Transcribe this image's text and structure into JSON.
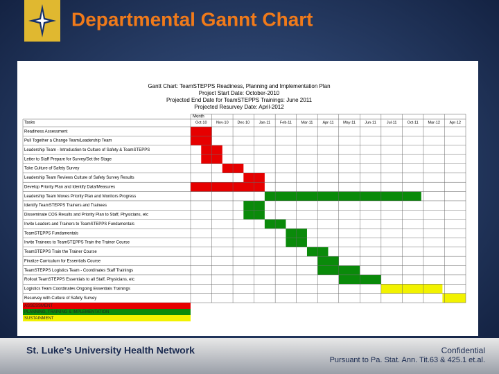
{
  "header": {
    "title": "Departmental Gannt Chart"
  },
  "gantt": {
    "title_lines": [
      "Gantt Chart: TeamSTEPPS Readiness, Planning and Implementation Plan",
      "Project Start Date: October-2010",
      "Projected End Date for TeamSTEPPS Trainings: June 2011",
      "Projected Resurvey Date: April-2012"
    ],
    "tasks_label": "Tasks",
    "month_label": "Month",
    "months": [
      "Oct-10",
      "Nov-10",
      "Dec-10",
      "Jan-11",
      "Feb-11",
      "Mar-11",
      "Apr-11",
      "May-11",
      "Jun-11",
      "Jul-11",
      "Oct-11",
      "Mar-12",
      "Apr-12"
    ],
    "rows": [
      {
        "task": "Readiness Assessment",
        "start": 0,
        "end": 1,
        "color": "#e60000"
      },
      {
        "task": "Pull Together a Change Team/Leadership Team",
        "start": 0,
        "end": 1,
        "color": "#e60000"
      },
      {
        "task": "Leadership Team - Introduction to Culture of Safety & TeamSTEPPS",
        "start": 0.5,
        "end": 1.5,
        "color": "#e60000"
      },
      {
        "task": "Letter to Staff Prepare for Survey/Set the Stage",
        "start": 0.5,
        "end": 1.5,
        "color": "#e60000"
      },
      {
        "task": "Take Culture of Safety Survey",
        "start": 1.5,
        "end": 2.5,
        "color": "#e60000"
      },
      {
        "task": "Leadership Team Reviews Culture of Safety Survey Results",
        "start": 2.5,
        "end": 3.5,
        "color": "#e60000"
      },
      {
        "task": "Develop Priority Plan and Identify Data/Measures",
        "start": 0,
        "end": 3.5,
        "color": "#e60000"
      },
      {
        "task": "Leadership Team Moves Priority Plan and Monitors Progress",
        "start": 3.5,
        "end": 10.9,
        "color": "#0a8a0a"
      },
      {
        "task": "Identify TeamSTEPPS Trainers and Trainees",
        "start": 2.5,
        "end": 3.5,
        "color": "#0a8a0a"
      },
      {
        "task": "Disseminate COS Results and Priority Plan to Staff, Physicians, etc",
        "start": 2.5,
        "end": 3.5,
        "color": "#0a8a0a"
      },
      {
        "task": "Invite Leaders and Trainers to TeamSTEPPS Fundamentals",
        "start": 3.5,
        "end": 4.5,
        "color": "#0a8a0a"
      },
      {
        "task": "TeamSTEPPS Fundamentals",
        "start": 4.5,
        "end": 5.5,
        "color": "#0a8a0a"
      },
      {
        "task": "Invite Trainees to TeamSTEPPS Train the Trainer Course",
        "start": 4.5,
        "end": 5.5,
        "color": "#0a8a0a"
      },
      {
        "task": "TeamSTEPPS Train the Trainer Course",
        "start": 5.5,
        "end": 6.5,
        "color": "#0a8a0a"
      },
      {
        "task": "Finalize Curriculum for Essentials Course",
        "start": 6,
        "end": 7,
        "color": "#0a8a0a"
      },
      {
        "task": "TeamSTEPPS Logistics Team - Coordinates Staff Trainings",
        "start": 6,
        "end": 8,
        "color": "#0a8a0a"
      },
      {
        "task": "Rollout TeamSTEPPS Essentials to all Staff, Physicians, etc",
        "start": 7,
        "end": 9,
        "color": "#0a8a0a"
      },
      {
        "task": "Logistics Team Coordinates Ongoing Essentials Trainings",
        "start": 9,
        "end": 11.9,
        "color": "#f2f200"
      },
      {
        "task": "Resurvey with Culture of Safety Survey",
        "start": 11.9,
        "end": 13,
        "color": "#f2f200"
      }
    ],
    "legend": [
      {
        "label": "ASSESSMENT",
        "color": "#e60000"
      },
      {
        "label": "PLANNING, TRAINING & IMPLEMENTATION",
        "color": "#0a8a0a"
      },
      {
        "label": "SUSTAINMENT",
        "color": "#f2f200"
      }
    ]
  },
  "footer": {
    "org": "St. Luke's University Health Network",
    "confidential": "Confidential",
    "notice": "Pursuant to Pa. Stat. Ann. Tit.63 & 425.1 et.al."
  }
}
